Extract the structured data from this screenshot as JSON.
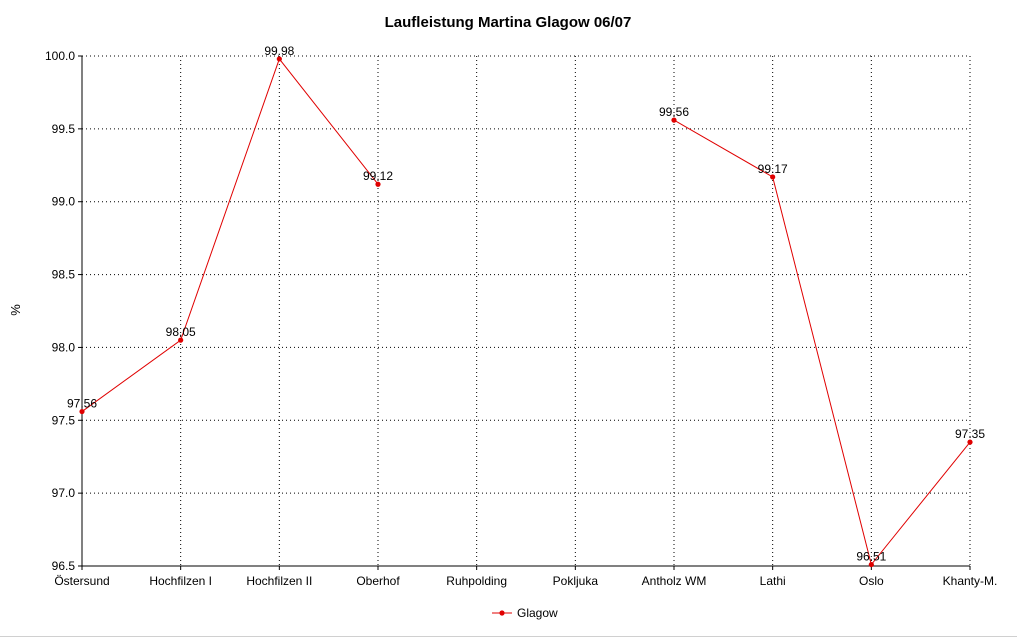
{
  "chart_data": {
    "type": "line",
    "title": "Laufleistung Martina Glagow 06/07",
    "xlabel": "",
    "ylabel": "%",
    "categories": [
      "Östersund",
      "Hochfilzen I",
      "Hochfilzen II",
      "Oberhof",
      "Ruhpolding",
      "Pokljuka",
      "Antholz WM",
      "Lathi",
      "Oslo",
      "Khanty-M."
    ],
    "ylim": [
      96.5,
      100.0
    ],
    "yticks": [
      "96.5",
      "97.0",
      "97.5",
      "98.0",
      "98.5",
      "99.0",
      "99.5",
      "100.0"
    ],
    "grid": true,
    "legend_position": "bottom",
    "series": [
      {
        "name": "Glagow",
        "color": "#e00000",
        "values": [
          97.56,
          98.05,
          99.98,
          99.12,
          null,
          null,
          99.56,
          99.17,
          96.51,
          97.35
        ],
        "data_labels": [
          "97.56",
          "98.05",
          "99.98",
          "99.12",
          "",
          "",
          "99.56",
          "99.17",
          "96.51",
          "97.35"
        ]
      }
    ]
  }
}
